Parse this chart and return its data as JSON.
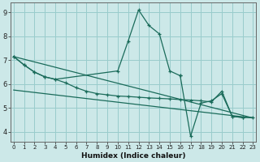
{
  "xlabel": "Humidex (Indice chaleur)",
  "background_color": "#cce8e8",
  "grid_color": "#99cccc",
  "line_color": "#1a6b5a",
  "x_values": [
    0,
    1,
    2,
    3,
    4,
    5,
    6,
    7,
    8,
    9,
    10,
    11,
    12,
    13,
    14,
    15,
    16,
    17,
    18,
    19,
    20,
    21,
    22,
    23
  ],
  "series_jagged": [
    7.15,
    6.8,
    6.5,
    6.3,
    6.2,
    null,
    null,
    null,
    null,
    null,
    6.55,
    7.8,
    9.1,
    8.45,
    8.1,
    6.55,
    6.35,
    null,
    null,
    null,
    null,
    null,
    null,
    null
  ],
  "series_smooth": [
    7.15,
    6.8,
    6.5,
    6.3,
    6.2,
    6.05,
    5.85,
    5.7,
    5.6,
    5.55,
    5.5,
    5.48,
    5.45,
    5.42,
    5.4,
    5.38,
    5.35,
    5.33,
    5.3,
    5.25,
    5.7,
    4.65,
    4.6,
    4.6
  ],
  "series_right": [
    null,
    null,
    null,
    null,
    null,
    null,
    null,
    null,
    null,
    null,
    null,
    null,
    null,
    null,
    null,
    null,
    6.35,
    3.82,
    5.2,
    5.3,
    5.6,
    4.65,
    4.6,
    null
  ],
  "line1_x": [
    0,
    23
  ],
  "line1_y": [
    7.15,
    4.58
  ],
  "line2_x": [
    0,
    23
  ],
  "line2_y": [
    5.75,
    4.58
  ],
  "ylim": [
    3.6,
    9.4
  ],
  "xlim": [
    -0.3,
    23.3
  ],
  "yticks": [
    4,
    5,
    6,
    7,
    8,
    9
  ],
  "xticks": [
    0,
    1,
    2,
    3,
    4,
    5,
    6,
    7,
    8,
    9,
    10,
    11,
    12,
    13,
    14,
    15,
    16,
    17,
    18,
    19,
    20,
    21,
    22,
    23
  ]
}
